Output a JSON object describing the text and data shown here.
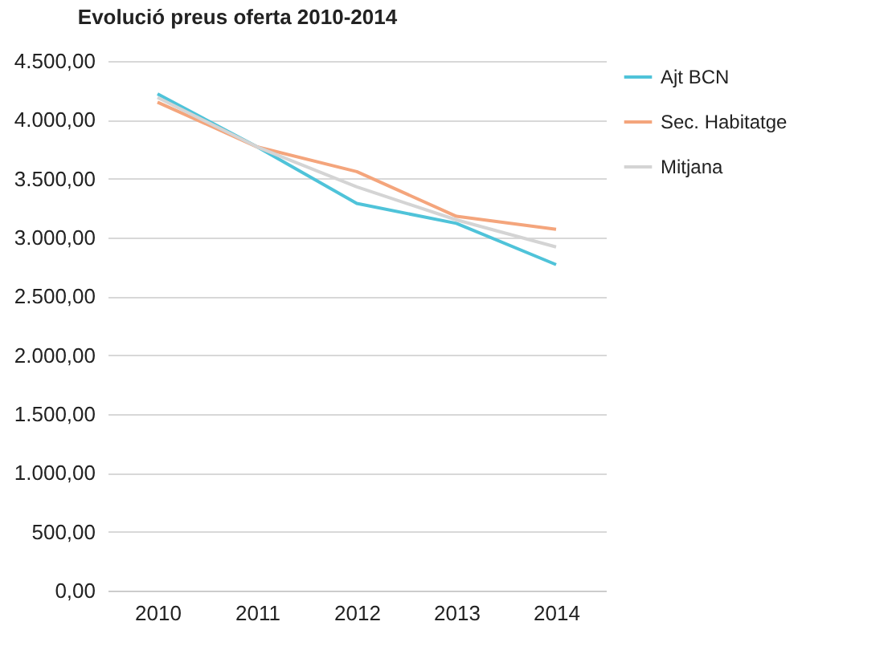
{
  "chart_data": {
    "type": "line",
    "title": "Evolució preus oferta 2010-2014",
    "categories": [
      "2010",
      "2011",
      "2012",
      "2013",
      "2014"
    ],
    "series": [
      {
        "name": "Ajt BCN",
        "color": "#4fc3d9",
        "values": [
          4220,
          3770,
          3290,
          3120,
          2770
        ]
      },
      {
        "name": "Sec. Habitatge",
        "color": "#f4a57c",
        "values": [
          4150,
          3770,
          3560,
          3180,
          3070
        ]
      },
      {
        "name": "Mitjana",
        "color": "#d4d4d4",
        "values": [
          4190,
          3770,
          3430,
          3150,
          2920
        ]
      }
    ],
    "ylim": [
      0,
      4500
    ],
    "yticks": [
      {
        "value": 0,
        "label": "0,00"
      },
      {
        "value": 500,
        "label": "500,00"
      },
      {
        "value": 1000,
        "label": "1.000,00"
      },
      {
        "value": 1500,
        "label": "1.500,00"
      },
      {
        "value": 2000,
        "label": "2.000,00"
      },
      {
        "value": 2500,
        "label": "2.500,00"
      },
      {
        "value": 3000,
        "label": "3.000,00"
      },
      {
        "value": 3500,
        "label": "3.500,00"
      },
      {
        "value": 4000,
        "label": "4.000,00"
      },
      {
        "value": 4500,
        "label": "4.500,00"
      }
    ],
    "grid": "y",
    "legend": "right",
    "marker": "none",
    "line_style": "solid"
  }
}
